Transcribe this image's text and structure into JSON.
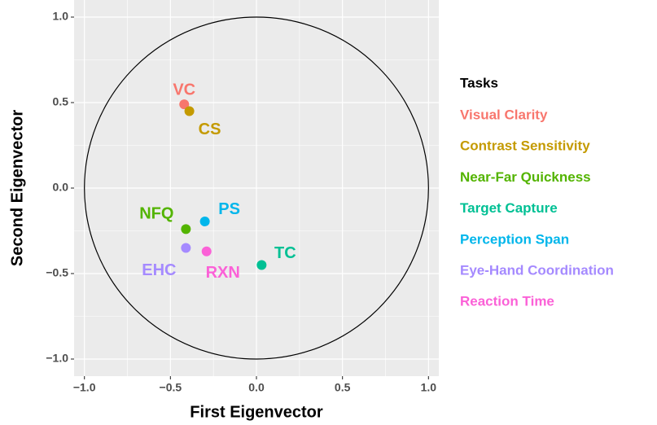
{
  "chart_data": {
    "type": "scatter",
    "x_label": "First Eigenvector",
    "y_label": "Second Eigenvector",
    "legend_title": "Tasks",
    "legend_position": "right",
    "grid": true,
    "circle": {
      "radius": 1,
      "color": "#000000"
    },
    "xlim": [
      -1.06,
      1.06
    ],
    "ylim": [
      -1.1,
      1.1
    ],
    "xticks": [
      {
        "value": -1.0,
        "label": "−1.0"
      },
      {
        "value": -0.5,
        "label": "−0.5"
      },
      {
        "value": 0,
        "label": "0.0"
      },
      0.5,
      {
        "value": 1.0,
        "label": "1.0"
      }
    ],
    "yticks": [
      {
        "value": -1.0,
        "label": "−1.0"
      },
      {
        "value": -0.5,
        "label": "−0.5"
      },
      {
        "value": 0,
        "label": "0.0"
      },
      0.5,
      {
        "value": 1.0,
        "label": "1.0"
      }
    ],
    "series": [
      {
        "name": "Visual Clarity",
        "label": "VC",
        "color": "#F8766D",
        "x": [
          -0.42
        ],
        "values": [
          0.49
        ]
      },
      {
        "name": "Contrast Sensitivity",
        "label": "CS",
        "color": "#C49A00",
        "x": [
          -0.39
        ],
        "values": [
          0.45
        ]
      },
      {
        "name": "Near-Far Quickness",
        "label": "NFQ",
        "color": "#53B400",
        "x": [
          -0.41
        ],
        "values": [
          -0.24
        ]
      },
      {
        "name": "Target Capture",
        "label": "TC",
        "color": "#00C094",
        "x": [
          0.03
        ],
        "values": [
          -0.45
        ]
      },
      {
        "name": "Perception Span",
        "label": "PS",
        "color": "#00B6EB",
        "x": [
          -0.3
        ],
        "values": [
          -0.195
        ]
      },
      {
        "name": "Eye-Hand Coordination",
        "label": "EHC",
        "color": "#A58AFF",
        "x": [
          -0.41
        ],
        "values": [
          -0.35
        ]
      },
      {
        "name": "Reaction Time",
        "label": "RXN",
        "color": "#FB61D7",
        "x": [
          -0.29
        ],
        "values": [
          -0.37
        ]
      }
    ]
  }
}
